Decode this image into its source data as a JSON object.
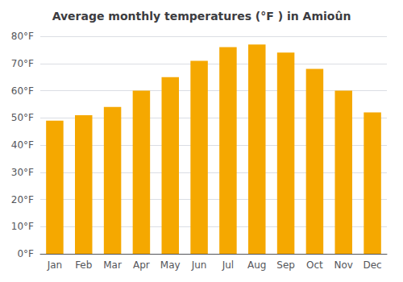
{
  "chart_data": {
    "type": "bar",
    "title": "Average monthly temperatures (°F ) in Amioûn",
    "categories": [
      "Jan",
      "Feb",
      "Mar",
      "Apr",
      "May",
      "Jun",
      "Jul",
      "Aug",
      "Sep",
      "Oct",
      "Nov",
      "Dec"
    ],
    "values": [
      49,
      51,
      54,
      60,
      65,
      71,
      76,
      77,
      74,
      68,
      60,
      52
    ],
    "color": "#F5A800",
    "ylim": [
      0,
      80
    ],
    "yticks": [
      {
        "value": 0,
        "label": "0°F"
      },
      {
        "value": 10,
        "label": "10°F"
      },
      {
        "value": 20,
        "label": "20°F"
      },
      {
        "value": 30,
        "label": "30°F"
      },
      {
        "value": 40,
        "label": "40°F"
      },
      {
        "value": 50,
        "label": "50°F"
      },
      {
        "value": 60,
        "label": "60°F"
      },
      {
        "value": 70,
        "label": "70°F"
      },
      {
        "value": 80,
        "label": "80°F"
      }
    ],
    "grid": true
  }
}
